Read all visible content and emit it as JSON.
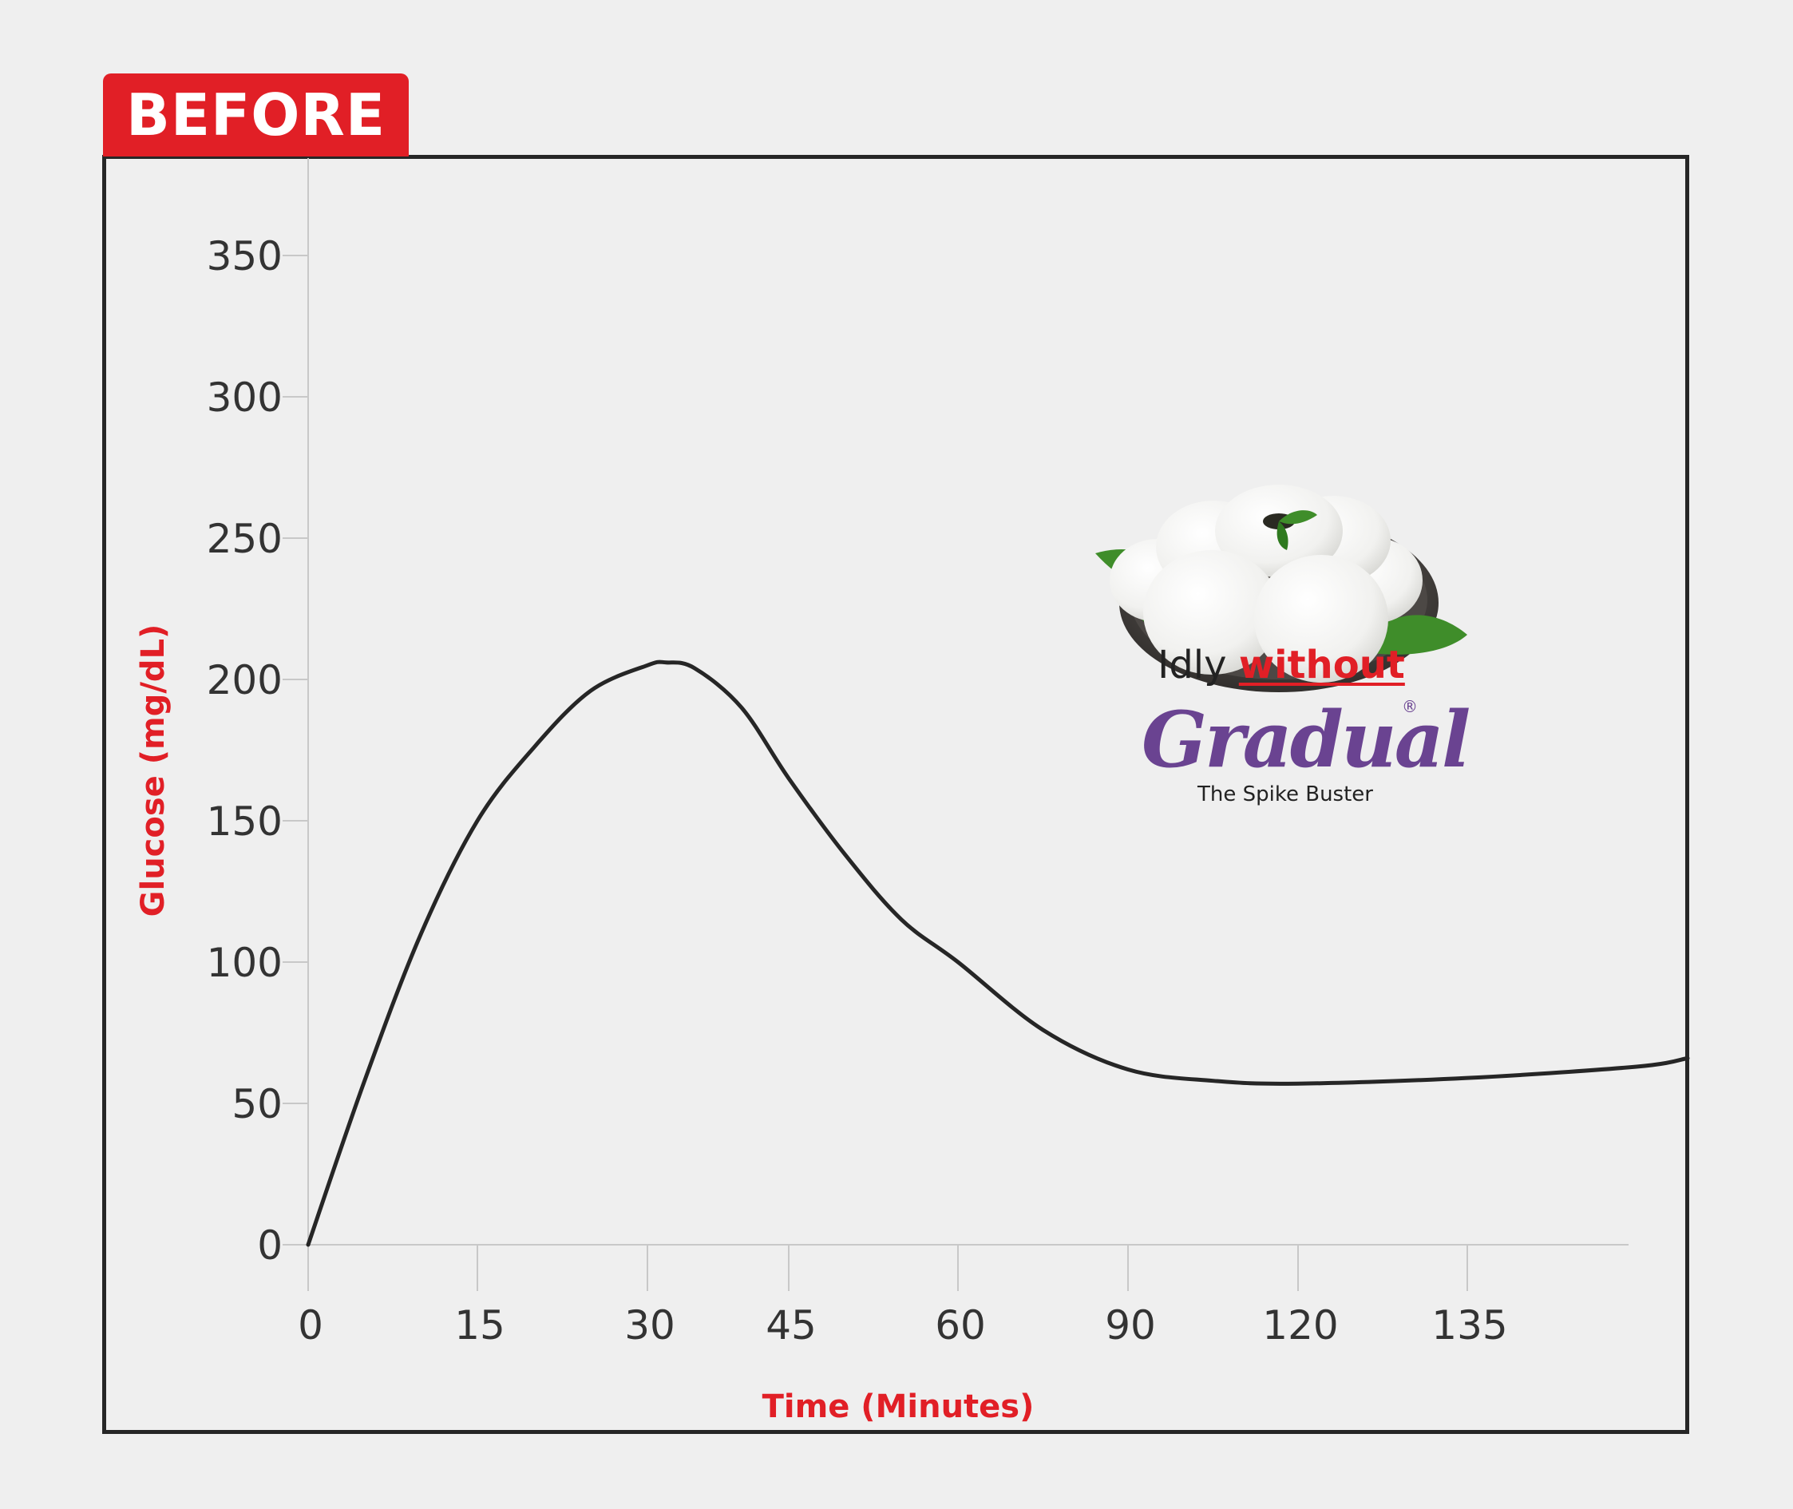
{
  "badge": {
    "label": "BEFORE",
    "color": "#e11f26"
  },
  "product": {
    "image": "idly-plate-image",
    "caption_prefix": "Idly",
    "caption_emphasis": "without",
    "brand_name": "Gradual",
    "brand_mark": "®",
    "tagline": "The Spike Buster",
    "brand_color": "#6a4391"
  },
  "chart_data": {
    "type": "line",
    "title": "",
    "xlabel": "Time (Minutes)",
    "ylabel": "Glucose (mg/dL)",
    "x_ticks": [
      "0",
      "15",
      "30",
      "45",
      "60",
      "90",
      "120",
      "135"
    ],
    "y_ticks": [
      "0",
      "50",
      "100",
      "150",
      "200",
      "250",
      "300",
      "350"
    ],
    "ylim": [
      0,
      350
    ],
    "grid": false,
    "axis_title_color": "#e11f26",
    "line_color": "#262626",
    "series": [
      {
        "x": [
          0,
          5,
          10,
          15,
          20,
          25,
          30,
          32,
          35,
          40,
          45,
          50,
          55,
          60,
          75,
          90,
          105,
          120,
          135,
          150,
          160
        ],
        "y": [
          0,
          58,
          110,
          150,
          176,
          196,
          205,
          206,
          204,
          190,
          165,
          138,
          115,
          100,
          76,
          62,
          58,
          57,
          59,
          63,
          66
        ]
      }
    ]
  }
}
